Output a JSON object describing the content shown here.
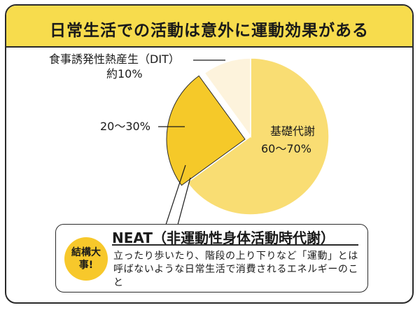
{
  "title": "日常生活での活動は意外に運動効果がある",
  "chart_data": {
    "type": "pie",
    "slices": [
      {
        "label": "基礎代謝",
        "value_text": "60〜70%",
        "value": 65,
        "color": "#f9dd73"
      },
      {
        "label": "",
        "value_text": "20〜30%",
        "value": 25,
        "color": "#f5c929"
      },
      {
        "label": "食事誘発性熱産生（DIT）",
        "value_text": "約10%",
        "value": 10,
        "color": "#fdf3dc"
      }
    ]
  },
  "neat": {
    "badge": "結構大事!",
    "title": "NEAT（非運動性身体活動時代謝）",
    "description": "立ったり歩いたり、階段の上り下りなど「運動」とは呼ばないような日常生活で消費されるエネルギーのこと"
  }
}
